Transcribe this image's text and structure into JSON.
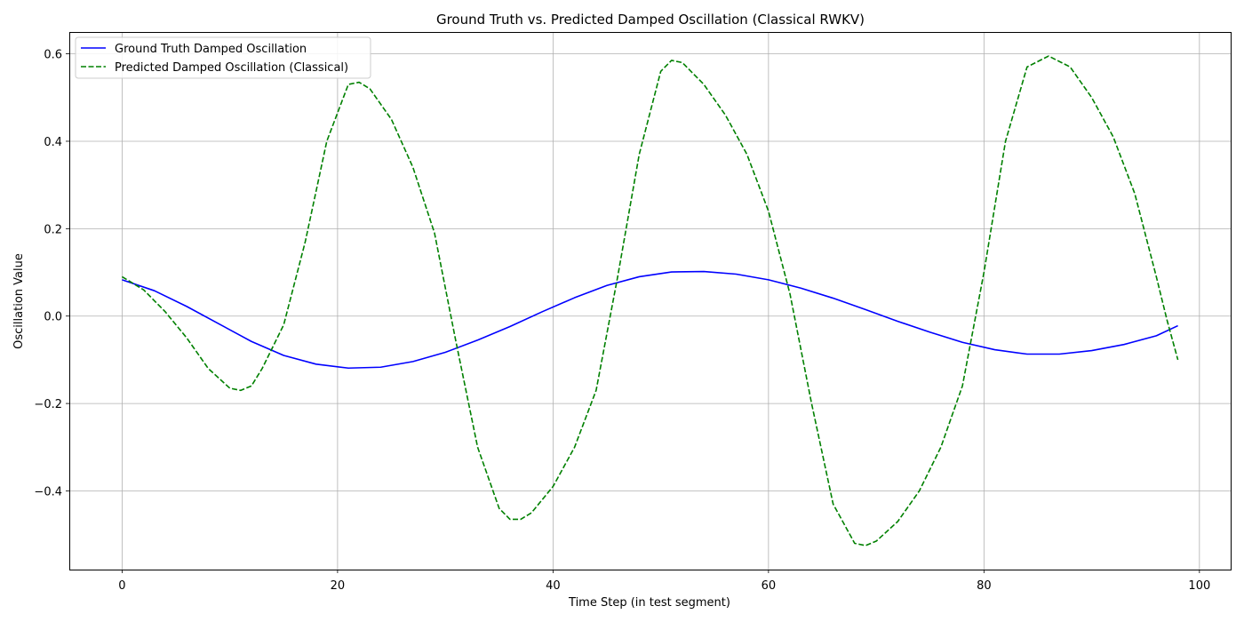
{
  "chart_data": {
    "type": "line",
    "title": "Ground Truth vs. Predicted Damped Oscillation (Classical RWKV)",
    "xlabel": "Time Step (in test segment)",
    "ylabel": "Oscillation Value",
    "xlim": [
      -4.9,
      102.9
    ],
    "ylim": [
      -0.58,
      0.65
    ],
    "xticks": [
      0,
      20,
      40,
      60,
      80,
      100
    ],
    "xtick_labels": [
      "0",
      "20",
      "40",
      "60",
      "80",
      "100"
    ],
    "yticks": [
      -0.4,
      -0.2,
      0.0,
      0.2,
      0.4,
      0.6
    ],
    "ytick_labels": [
      "−0.4",
      "−0.2",
      "0.0",
      "0.2",
      "0.4",
      "0.6"
    ],
    "grid": true,
    "legend_position": "top-left",
    "series": [
      {
        "name": "Ground Truth Damped Oscillation",
        "color": "#0000ff",
        "style": "solid",
        "points": [
          [
            0,
            0.083
          ],
          [
            3,
            0.058
          ],
          [
            6,
            0.022
          ],
          [
            9,
            -0.018
          ],
          [
            12,
            -0.058
          ],
          [
            15,
            -0.09
          ],
          [
            18,
            -0.11
          ],
          [
            21,
            -0.119
          ],
          [
            24,
            -0.117
          ],
          [
            27,
            -0.104
          ],
          [
            30,
            -0.083
          ],
          [
            33,
            -0.055
          ],
          [
            36,
            -0.024
          ],
          [
            39,
            0.01
          ],
          [
            42,
            0.042
          ],
          [
            45,
            0.07
          ],
          [
            48,
            0.09
          ],
          [
            51,
            0.101
          ],
          [
            54,
            0.102
          ],
          [
            57,
            0.096
          ],
          [
            60,
            0.083
          ],
          [
            63,
            0.064
          ],
          [
            66,
            0.041
          ],
          [
            69,
            0.015
          ],
          [
            72,
            -0.012
          ],
          [
            75,
            -0.037
          ],
          [
            78,
            -0.06
          ],
          [
            81,
            -0.077
          ],
          [
            84,
            -0.087
          ],
          [
            87,
            -0.087
          ],
          [
            90,
            -0.079
          ],
          [
            93,
            -0.065
          ],
          [
            96,
            -0.045
          ],
          [
            98,
            -0.022
          ]
        ]
      },
      {
        "name": "Predicted Damped Oscillation (Classical)",
        "color": "#008000",
        "style": "dashed",
        "points": [
          [
            0,
            0.09
          ],
          [
            2,
            0.06
          ],
          [
            4,
            0.01
          ],
          [
            6,
            -0.05
          ],
          [
            8,
            -0.12
          ],
          [
            10,
            -0.165
          ],
          [
            11,
            -0.17
          ],
          [
            12,
            -0.16
          ],
          [
            13,
            -0.12
          ],
          [
            15,
            -0.02
          ],
          [
            17,
            0.17
          ],
          [
            19,
            0.4
          ],
          [
            21,
            0.53
          ],
          [
            22,
            0.535
          ],
          [
            23,
            0.52
          ],
          [
            25,
            0.45
          ],
          [
            27,
            0.34
          ],
          [
            29,
            0.19
          ],
          [
            31,
            -0.06
          ],
          [
            33,
            -0.3
          ],
          [
            35,
            -0.44
          ],
          [
            36,
            -0.465
          ],
          [
            37,
            -0.465
          ],
          [
            38,
            -0.45
          ],
          [
            40,
            -0.39
          ],
          [
            42,
            -0.3
          ],
          [
            44,
            -0.17
          ],
          [
            46,
            0.09
          ],
          [
            48,
            0.37
          ],
          [
            50,
            0.56
          ],
          [
            51,
            0.585
          ],
          [
            52,
            0.58
          ],
          [
            54,
            0.53
          ],
          [
            56,
            0.46
          ],
          [
            58,
            0.37
          ],
          [
            60,
            0.24
          ],
          [
            62,
            0.05
          ],
          [
            64,
            -0.2
          ],
          [
            66,
            -0.43
          ],
          [
            68,
            -0.52
          ],
          [
            69,
            -0.525
          ],
          [
            70,
            -0.515
          ],
          [
            72,
            -0.47
          ],
          [
            74,
            -0.4
          ],
          [
            76,
            -0.3
          ],
          [
            78,
            -0.16
          ],
          [
            80,
            0.1
          ],
          [
            82,
            0.4
          ],
          [
            84,
            0.57
          ],
          [
            86,
            0.595
          ],
          [
            88,
            0.57
          ],
          [
            90,
            0.5
          ],
          [
            92,
            0.41
          ],
          [
            94,
            0.28
          ],
          [
            96,
            0.09
          ],
          [
            97,
            -0.01
          ],
          [
            98,
            -0.1
          ]
        ]
      }
    ]
  }
}
